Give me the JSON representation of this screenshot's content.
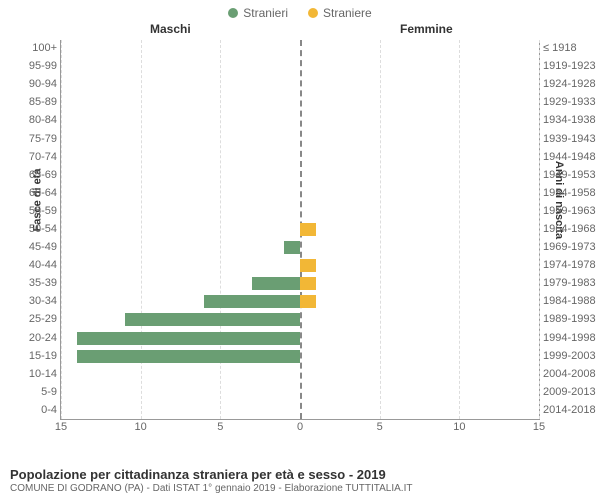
{
  "chart": {
    "type": "population-pyramid",
    "legend": [
      {
        "label": "Stranieri",
        "color": "#6a9e73"
      },
      {
        "label": "Straniere",
        "color": "#f2b736"
      }
    ],
    "panel_labels": {
      "left": "Maschi",
      "right": "Femmine"
    },
    "y_axis_left_title": "Fasce di età",
    "y_axis_right_title": "Anni di nascita",
    "x_max": 15,
    "x_ticks": [
      15,
      10,
      5,
      0,
      5,
      10,
      15
    ],
    "grid_color": "#dddddd",
    "center_line_color": "#888888",
    "bar_color_male": "#6a9e73",
    "bar_color_female": "#f2b736",
    "background_color": "#ffffff",
    "rows": [
      {
        "age": "100+",
        "birth": "≤ 1918",
        "m": 0,
        "f": 0
      },
      {
        "age": "95-99",
        "birth": "1919-1923",
        "m": 0,
        "f": 0
      },
      {
        "age": "90-94",
        "birth": "1924-1928",
        "m": 0,
        "f": 0
      },
      {
        "age": "85-89",
        "birth": "1929-1933",
        "m": 0,
        "f": 0
      },
      {
        "age": "80-84",
        "birth": "1934-1938",
        "m": 0,
        "f": 0
      },
      {
        "age": "75-79",
        "birth": "1939-1943",
        "m": 0,
        "f": 0
      },
      {
        "age": "70-74",
        "birth": "1944-1948",
        "m": 0,
        "f": 0
      },
      {
        "age": "65-69",
        "birth": "1949-1953",
        "m": 0,
        "f": 0
      },
      {
        "age": "60-64",
        "birth": "1954-1958",
        "m": 0,
        "f": 0
      },
      {
        "age": "55-59",
        "birth": "1959-1963",
        "m": 0,
        "f": 0
      },
      {
        "age": "50-54",
        "birth": "1964-1968",
        "m": 0,
        "f": 1
      },
      {
        "age": "45-49",
        "birth": "1969-1973",
        "m": 1,
        "f": 0
      },
      {
        "age": "40-44",
        "birth": "1974-1978",
        "m": 0,
        "f": 1
      },
      {
        "age": "35-39",
        "birth": "1979-1983",
        "m": 3,
        "f": 1
      },
      {
        "age": "30-34",
        "birth": "1984-1988",
        "m": 6,
        "f": 1
      },
      {
        "age": "25-29",
        "birth": "1989-1993",
        "m": 11,
        "f": 0
      },
      {
        "age": "20-24",
        "birth": "1994-1998",
        "m": 14,
        "f": 0
      },
      {
        "age": "15-19",
        "birth": "1999-2003",
        "m": 14,
        "f": 0
      },
      {
        "age": "10-14",
        "birth": "2004-2008",
        "m": 0,
        "f": 0
      },
      {
        "age": "5-9",
        "birth": "2009-2013",
        "m": 0,
        "f": 0
      },
      {
        "age": "0-4",
        "birth": "2014-2018",
        "m": 0,
        "f": 0
      }
    ]
  },
  "footer": {
    "title": "Popolazione per cittadinanza straniera per età e sesso - 2019",
    "subtitle": "COMUNE DI GODRANO (PA) - Dati ISTAT 1° gennaio 2019 - Elaborazione TUTTITALIA.IT"
  }
}
